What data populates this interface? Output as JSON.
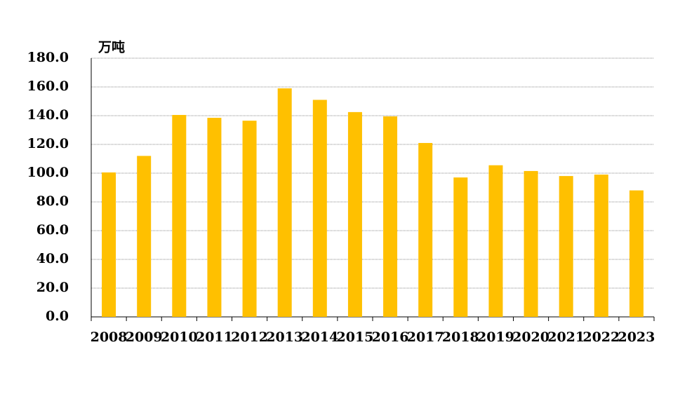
{
  "chart_data": {
    "type": "bar",
    "unit_label": "万吨",
    "categories": [
      "2008",
      "2009",
      "2010",
      "2011",
      "2012",
      "2013",
      "2014",
      "2015",
      "2016",
      "2017",
      "2018",
      "2019",
      "2020",
      "2021",
      "2022",
      "2023"
    ],
    "values": [
      100.5,
      112,
      140.5,
      138.5,
      136.5,
      159,
      151,
      142.5,
      139.5,
      121,
      97,
      105.5,
      101.5,
      98,
      99,
      88
    ],
    "color": "#ffc000",
    "ylim": [
      0,
      180
    ],
    "yticks": [
      {
        "value": 0,
        "label": "0.0"
      },
      {
        "value": 20,
        "label": "20.0"
      },
      {
        "value": 40,
        "label": "40.0"
      },
      {
        "value": 60,
        "label": "60.0"
      },
      {
        "value": 80,
        "label": "80.0"
      },
      {
        "value": 100,
        "label": "100.0"
      },
      {
        "value": 120,
        "label": "120.0"
      },
      {
        "value": 140,
        "label": "140.0"
      },
      {
        "value": 160,
        "label": "160.0"
      },
      {
        "value": 180,
        "label": "180.0"
      }
    ],
    "grid": true
  }
}
